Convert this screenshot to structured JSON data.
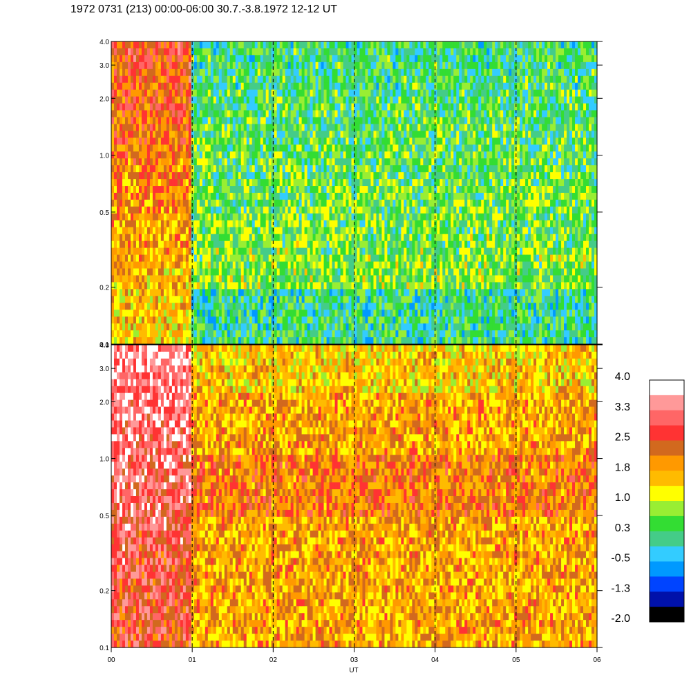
{
  "header": {
    "title": "1972 0731 (213) 00:00-06:00 30.7.-3.8.1972  12-12 UT"
  },
  "chart_data": {
    "type": "heatmap",
    "title": "1972 0731 (213) 00:00-06:00 30.7.-3.8.1972  12-12 UT",
    "xlabel": "UT",
    "x_ticks": [
      "00",
      "01",
      "02",
      "03",
      "04",
      "05",
      "06"
    ],
    "x_range": [
      0,
      6
    ],
    "hour_markers": [
      1,
      2,
      3,
      4,
      5
    ],
    "data_gap_end_hour": 1.0,
    "panels": [
      {
        "name": "upper",
        "y_scale": "log",
        "y_range": [
          0.1,
          4.0
        ],
        "y_ticks": [
          {
            "value": 0.1,
            "label": "0.1"
          },
          {
            "value": 0.2,
            "label": "0.2"
          },
          {
            "value": 0.5,
            "label": "0.5"
          },
          {
            "value": 1.0,
            "label": "1.0"
          },
          {
            "value": 2.0,
            "label": "2.0"
          },
          {
            "value": 3.0,
            "label": "3.0"
          },
          {
            "value": 4.0,
            "label": "4.0"
          }
        ],
        "approx_level_first_hour": 2.0,
        "approx_level_rest": 0.5
      },
      {
        "name": "lower",
        "y_scale": "log",
        "y_range": [
          0.1,
          4.0
        ],
        "y_ticks": [
          {
            "value": 0.1,
            "label": "0.1"
          },
          {
            "value": 0.2,
            "label": "0.2"
          },
          {
            "value": 0.5,
            "label": "0.5"
          },
          {
            "value": 1.0,
            "label": "1.0"
          },
          {
            "value": 2.0,
            "label": "2.0"
          },
          {
            "value": 3.0,
            "label": "3.0"
          },
          {
            "value": 4.0,
            "label": "4.0"
          }
        ],
        "approx_level_first_hour": 3.0,
        "approx_level_rest": 1.8
      }
    ],
    "colorbar": {
      "labels": [
        "4.0",
        "3.3",
        "2.5",
        "1.8",
        "1.0",
        "0.3",
        "-0.5",
        "-1.3",
        "-2.0"
      ],
      "range": [
        -2.0,
        4.0
      ],
      "colors": [
        "#ffffff",
        "#ff9999",
        "#ff6666",
        "#ff3333",
        "#d2691e",
        "#ff9900",
        "#ffbb00",
        "#ffff00",
        "#99ee33",
        "#33dd33",
        "#44cc88",
        "#33ccff",
        "#0099ff",
        "#0044ff",
        "#0011aa",
        "#000000"
      ]
    }
  }
}
